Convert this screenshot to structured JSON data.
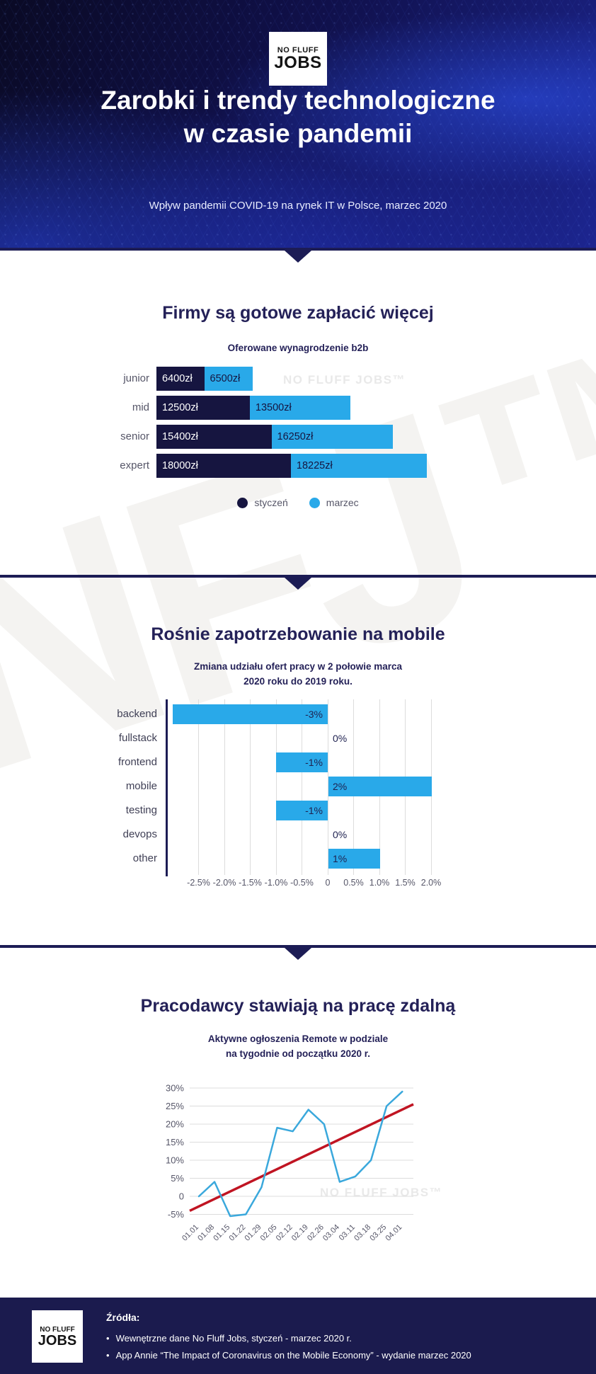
{
  "header": {
    "logo": {
      "top": "NO FLUFF",
      "bottom": "JOBS"
    },
    "title_line1": "Zarobki i trendy technologiczne",
    "title_line2": "w czasie pandemii",
    "subtitle": "Wpływ pandemii COVID-19 na rynek IT w Polsce, marzec 2020"
  },
  "watermarks": {
    "brand": "NO FLUFF JOBS™",
    "big": "NFJ™"
  },
  "sections": {
    "salary": {
      "title": "Firmy są gotowe zapłacić więcej",
      "subtitle": "Oferowane wynagrodzenie b2b",
      "legend": [
        {
          "label": "styczeń",
          "color": "#161540"
        },
        {
          "label": "marzec",
          "color": "#29a9e9"
        }
      ]
    },
    "mobile": {
      "title": "Rośnie zapotrzebowanie na mobile",
      "subtitle_line1": "Zmiana udziału ofert pracy w 2 połowie marca",
      "subtitle_line2": "2020 roku do 2019 roku."
    },
    "remote": {
      "title": "Pracodawcy stawiają na pracę zdalną",
      "subtitle_line1": "Aktywne ogłoszenia Remote w podziale",
      "subtitle_line2": "na tygodnie od początku 2020 r."
    }
  },
  "chart_data": [
    {
      "type": "bar",
      "orientation": "horizontal-grouped",
      "title": "Oferowane wynagrodzenie b2b",
      "categories": [
        "junior",
        "mid",
        "senior",
        "expert"
      ],
      "series": [
        {
          "name": "styczeń",
          "color": "#161540",
          "values": [
            6400,
            12500,
            15400,
            18000
          ],
          "labels": [
            "6400zł",
            "12500zł",
            "15400zł",
            "18000zł"
          ]
        },
        {
          "name": "marzec",
          "color": "#29a9e9",
          "values": [
            6500,
            13500,
            16250,
            18225
          ],
          "labels": [
            "6500zł",
            "13500zł",
            "16250zł",
            "18225zł"
          ]
        }
      ],
      "unit": "zł",
      "legend_position": "bottom"
    },
    {
      "type": "bar",
      "orientation": "horizontal-diverging",
      "title": "Zmiana udziału ofert pracy w 2 połowie marca 2020 roku do 2019 roku.",
      "categories": [
        "backend",
        "fullstack",
        "frontend",
        "mobile",
        "testing",
        "devops",
        "other"
      ],
      "values": [
        -3,
        0,
        -1,
        2,
        -1,
        0,
        1
      ],
      "labels": [
        "-3%",
        "0%",
        "-1%",
        "2%",
        "-1%",
        "0%",
        "1%"
      ],
      "x_ticks": [
        "-2.5%",
        "-2.0%",
        "-1.5%",
        "-1.0%",
        "-0.5%",
        "0",
        "0.5%",
        "1.0%",
        "1.5%",
        "2.0%"
      ],
      "x_tick_values": [
        -2.5,
        -2.0,
        -1.5,
        -1.0,
        -0.5,
        0,
        0.5,
        1.0,
        1.5,
        2.0
      ],
      "xlim": [
        -3.1,
        2.0
      ],
      "bar_color": "#29a9e9",
      "grid": true
    },
    {
      "type": "line",
      "title": "Aktywne ogłoszenia Remote w podziale na tygodnie od początku 2020 r.",
      "x": [
        "01.01",
        "01.08",
        "01.15",
        "01.22",
        "01.29",
        "02.05",
        "02.12",
        "02.19",
        "02.26",
        "03.04",
        "03.11",
        "03.18",
        "03.25",
        "04.01"
      ],
      "series": [
        {
          "name": "aktywne ogłoszenia Remote",
          "color": "#3aa8dc",
          "values": [
            0,
            4,
            -5.5,
            -5,
            2.5,
            19,
            18,
            24,
            20,
            4,
            5.5,
            10,
            25,
            29
          ]
        },
        {
          "name": "trend",
          "color": "#c01422",
          "style": "straight",
          "start": -4,
          "end": 25.5
        }
      ],
      "y_ticks": [
        "30%",
        "25%",
        "20%",
        "15%",
        "10%",
        "5%",
        "0",
        "-5%"
      ],
      "y_tick_values": [
        30,
        25,
        20,
        15,
        10,
        5,
        0,
        -5
      ],
      "ylim": [
        -7,
        31
      ],
      "grid": true,
      "ylabel": "",
      "xlabel": ""
    }
  ],
  "footer": {
    "logo": {
      "top": "NO FLUFF",
      "bottom": "JOBS"
    },
    "sources_heading": "Źródła:",
    "sources": [
      "Wewnętrzne dane No Fluff Jobs, styczeń - marzec 2020 r.",
      "App Annie “The Impact of Coronavirus on the Mobile Economy” - wydanie marzec 2020"
    ]
  },
  "colors": {
    "navy_dark": "#161540",
    "navy_divider": "#1c1c55",
    "title_navy": "#242158",
    "blue": "#29a9e9",
    "line_blue": "#3aa8dc",
    "trend_red": "#c01422",
    "label_gray": "#565668",
    "gridline": "#dcdcdc",
    "footer_bg": "#1b1b4e",
    "watermark": "#e9e9e9"
  }
}
